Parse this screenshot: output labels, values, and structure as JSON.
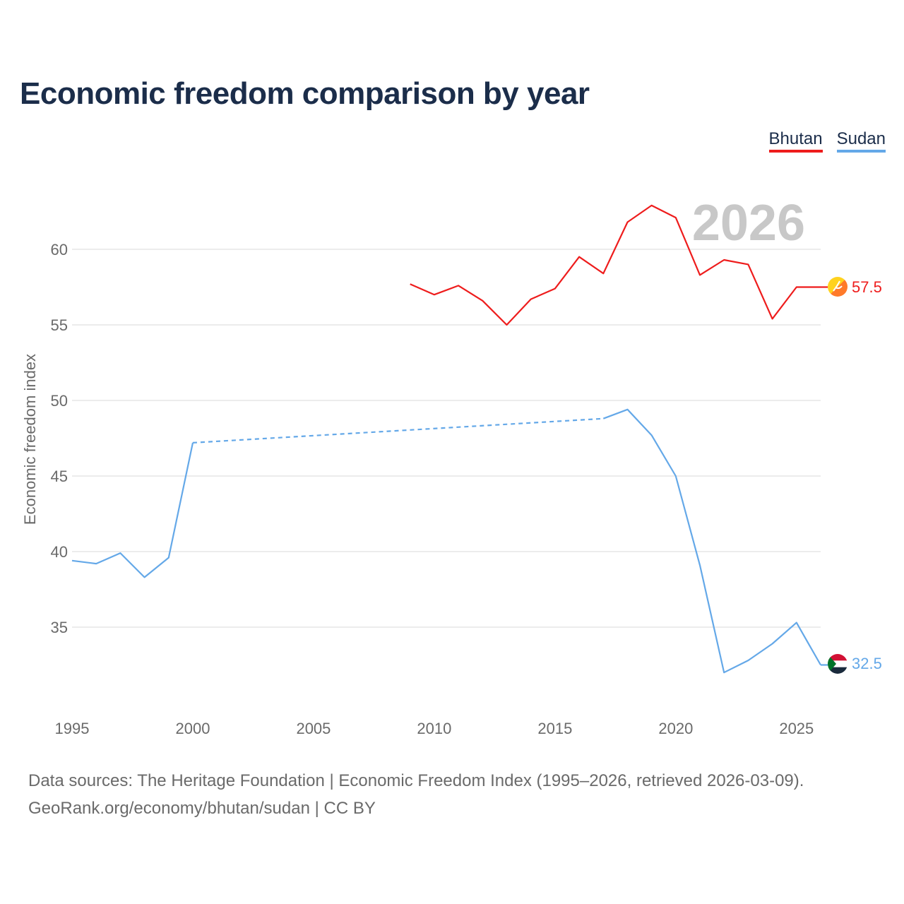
{
  "chart_data": {
    "type": "line",
    "title": "Economic freedom comparison by year",
    "ylabel": "Economic freedom index",
    "xlabel": "",
    "xlim": [
      1995,
      2026
    ],
    "ylim": [
      30,
      65
    ],
    "xticks": [
      1995,
      2000,
      2005,
      2010,
      2015,
      2020,
      2025
    ],
    "yticks": [
      35,
      40,
      45,
      50,
      55,
      60
    ],
    "year_watermark": "2026",
    "grid": true,
    "legend_position": "top-right",
    "series": [
      {
        "name": "Bhutan",
        "color": "#ee1c1c",
        "end_label": "57.5",
        "points": [
          [
            2009,
            57.7
          ],
          [
            2010,
            57.0
          ],
          [
            2011,
            57.6
          ],
          [
            2012,
            56.6
          ],
          [
            2013,
            55.0
          ],
          [
            2014,
            56.7
          ],
          [
            2015,
            57.4
          ],
          [
            2016,
            59.5
          ],
          [
            2017,
            58.4
          ],
          [
            2018,
            61.8
          ],
          [
            2019,
            62.9
          ],
          [
            2020,
            62.1
          ],
          [
            2021,
            58.3
          ],
          [
            2022,
            59.3
          ],
          [
            2023,
            59.0
          ],
          [
            2024,
            55.4
          ],
          [
            2025,
            57.5
          ],
          [
            2026,
            57.5
          ]
        ],
        "gaps": []
      },
      {
        "name": "Sudan",
        "color": "#64a8e8",
        "end_label": "32.5",
        "points": [
          [
            1995,
            39.4
          ],
          [
            1996,
            39.2
          ],
          [
            1997,
            39.9
          ],
          [
            1998,
            38.3
          ],
          [
            1999,
            39.6
          ],
          [
            2000,
            47.2
          ],
          [
            2017,
            48.8
          ],
          [
            2018,
            49.4
          ],
          [
            2019,
            47.7
          ],
          [
            2020,
            45.0
          ],
          [
            2021,
            39.1
          ],
          [
            2022,
            32.0
          ],
          [
            2023,
            32.8
          ],
          [
            2024,
            33.9
          ],
          [
            2025,
            35.3
          ],
          [
            2026,
            32.5
          ]
        ],
        "gaps": [
          [
            2000,
            2017
          ]
        ]
      }
    ]
  },
  "footer": {
    "line1": "Data sources: The Heritage Foundation | Economic Freedom Index (1995–2026, retrieved 2026-03-09).",
    "line2": "GeoRank.org/economy/bhutan/sudan | CC BY"
  }
}
